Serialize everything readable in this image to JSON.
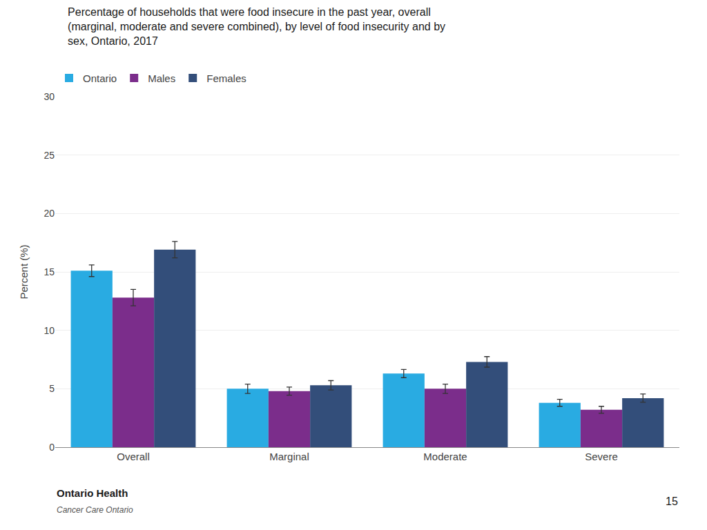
{
  "chart_data": {
    "type": "bar",
    "title": "Percentage of households that were food insecure in the past year, overall\n(marginal, moderate and severe combined), by level of food insecurity and by\nsex, Ontario, 2017",
    "categories": [
      "Overall",
      "Marginal",
      "Moderate",
      "Severe"
    ],
    "series": [
      {
        "name": "Ontario",
        "color": "#29ABE2",
        "values": [
          15.1,
          5.0,
          6.3,
          3.8
        ],
        "errors": [
          0.5,
          0.4,
          0.35,
          0.3
        ]
      },
      {
        "name": "Males",
        "color": "#7B2D8B",
        "values": [
          12.8,
          4.8,
          5.0,
          3.2
        ],
        "errors": [
          0.7,
          0.35,
          0.4,
          0.3
        ]
      },
      {
        "name": "Females",
        "color": "#334E7A",
        "values": [
          16.9,
          5.3,
          7.3,
          4.2
        ],
        "errors": [
          0.7,
          0.4,
          0.45,
          0.35
        ]
      }
    ],
    "ylabel": "Percent (%)",
    "ylim": [
      0,
      30
    ],
    "yticks": [
      0,
      5,
      10,
      15,
      20,
      25,
      30
    ],
    "grid": true,
    "legend": "upper left",
    "annotations": [
      "Ontario Health",
      "Cancer Care Ontario",
      "15"
    ]
  }
}
